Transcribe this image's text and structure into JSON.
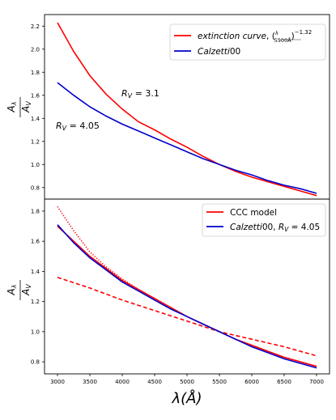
{
  "chart_data": [
    {
      "type": "line",
      "panel": "top",
      "ylabel": "Aλ / AV",
      "ylim": [
        0.7,
        2.3
      ],
      "xlim": [
        2800,
        7200
      ],
      "y_ticks": [
        "0.8",
        "1.0",
        "1.2",
        "1.4",
        "1.6",
        "1.8",
        "2.0",
        "2.2"
      ],
      "y_tick_values": [
        0.8,
        1.0,
        1.2,
        1.4,
        1.6,
        1.8,
        2.0,
        2.2
      ],
      "x_ticks_visible": false,
      "legend_position": "top-right",
      "annotations": [
        {
          "text": "R_V = 3.1",
          "x": 4000,
          "y": 1.62
        },
        {
          "text": "R_V = 4.05",
          "x": 3000,
          "y": 1.31
        }
      ],
      "legend_items": [
        {
          "label": "extinction curve, (λ/5500Å)^-1.32",
          "color": "#ff0000",
          "style": "solid"
        },
        {
          "label": "Calzetti00",
          "color": "#0000cc",
          "style": "solid"
        }
      ],
      "series": [
        {
          "name": "extinction curve, (λ/5500Å)^-1.32",
          "color": "#ff0000",
          "style": "solid",
          "x": [
            3000,
            3250,
            3500,
            3750,
            4000,
            4250,
            4500,
            4750,
            5000,
            5250,
            5500,
            5750,
            6000,
            6250,
            6500,
            6750,
            7000
          ],
          "y": [
            2.23,
            1.98,
            1.77,
            1.61,
            1.48,
            1.37,
            1.3,
            1.22,
            1.15,
            1.07,
            1.0,
            0.94,
            0.89,
            0.85,
            0.81,
            0.77,
            0.73
          ]
        },
        {
          "name": "Calzetti00",
          "color": "#0000cc",
          "style": "solid",
          "x": [
            3000,
            3250,
            3500,
            3750,
            4000,
            4250,
            4500,
            4750,
            5000,
            5250,
            5500,
            5750,
            6000,
            6250,
            6500,
            6750,
            7000
          ],
          "y": [
            1.71,
            1.6,
            1.5,
            1.42,
            1.35,
            1.29,
            1.23,
            1.17,
            1.11,
            1.05,
            1.0,
            0.95,
            0.91,
            0.86,
            0.82,
            0.79,
            0.75
          ]
        }
      ]
    },
    {
      "type": "line",
      "panel": "bottom",
      "ylabel": "Aλ / AV",
      "xlabel": "λ(Å)",
      "ylim": [
        0.72,
        1.88
      ],
      "xlim": [
        2800,
        7200
      ],
      "x_ticks": [
        "3000",
        "3500",
        "4000",
        "4500",
        "5000",
        "5500",
        "6000",
        "6500",
        "7000"
      ],
      "x_tick_values": [
        3000,
        3500,
        4000,
        4500,
        5000,
        5500,
        6000,
        6500,
        7000
      ],
      "y_ticks": [
        "0.8",
        "1.0",
        "1.2",
        "1.4",
        "1.6",
        "1.8"
      ],
      "y_tick_values": [
        0.8,
        1.0,
        1.2,
        1.4,
        1.6,
        1.8
      ],
      "legend_position": "top-right",
      "legend_items": [
        {
          "label": "CCC model",
          "color": "#ff0000",
          "style": "solid"
        },
        {
          "label": "Calzetti00, R_V = 4.05",
          "color": "#0000cc",
          "style": "solid"
        }
      ],
      "series": [
        {
          "name": "CCC model",
          "color": "#ff0000",
          "style": "solid",
          "x": [
            3000,
            3250,
            3500,
            3750,
            4000,
            4250,
            4500,
            4750,
            5000,
            5250,
            5500,
            5750,
            6000,
            6250,
            6500,
            6750,
            7000
          ],
          "y": [
            1.7,
            1.6,
            1.5,
            1.42,
            1.34,
            1.28,
            1.22,
            1.16,
            1.1,
            1.05,
            1.0,
            0.95,
            0.91,
            0.87,
            0.83,
            0.8,
            0.77
          ]
        },
        {
          "color": "#ff0000",
          "style": "dotted",
          "x": [
            3000,
            3250,
            3500,
            3750,
            4000,
            4250,
            4500,
            4750,
            5000,
            5250,
            5500,
            5750,
            6000,
            6250,
            6500,
            6750,
            7000
          ],
          "y": [
            1.83,
            1.67,
            1.53,
            1.43,
            1.35,
            1.28,
            1.22,
            1.16,
            1.1,
            1.05,
            1.0,
            0.95,
            0.91,
            0.87,
            0.83,
            0.8,
            0.77
          ]
        },
        {
          "color": "#ff0000",
          "style": "dashed",
          "x": [
            3000,
            3500,
            4000,
            4500,
            5000,
            5500,
            6000,
            6500,
            7000
          ],
          "y": [
            1.36,
            1.29,
            1.21,
            1.14,
            1.07,
            1.0,
            0.95,
            0.9,
            0.84
          ]
        },
        {
          "name": "Calzetti00, R_V = 4.05",
          "color": "#0000cc",
          "style": "solid",
          "x": [
            3000,
            3250,
            3500,
            3750,
            4000,
            4250,
            4500,
            4750,
            5000,
            5250,
            5500,
            5750,
            6000,
            6250,
            6500,
            6750,
            7000
          ],
          "y": [
            1.71,
            1.59,
            1.49,
            1.41,
            1.33,
            1.27,
            1.21,
            1.15,
            1.1,
            1.05,
            1.0,
            0.95,
            0.9,
            0.86,
            0.82,
            0.79,
            0.76
          ]
        }
      ]
    }
  ]
}
